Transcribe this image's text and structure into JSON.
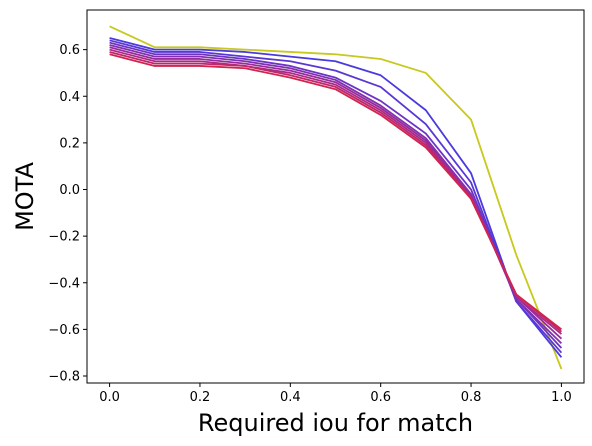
{
  "chart_data": {
    "type": "line",
    "title": "",
    "xlabel": "Required iou for match",
    "ylabel": "MOTA",
    "xlim": [
      -0.05,
      1.05
    ],
    "ylim": [
      -0.83,
      0.77
    ],
    "grid": false,
    "x": [
      0.0,
      0.1,
      0.2,
      0.3,
      0.4,
      0.5,
      0.6,
      0.7,
      0.8,
      0.9,
      1.0
    ],
    "x_ticks": [
      {
        "value": 0.0,
        "label": "0.0"
      },
      {
        "value": 0.2,
        "label": "0.2"
      },
      {
        "value": 0.4,
        "label": "0.4"
      },
      {
        "value": 0.6,
        "label": "0.6"
      },
      {
        "value": 0.8,
        "label": "0.8"
      },
      {
        "value": 1.0,
        "label": "1.0"
      }
    ],
    "y_ticks": [
      {
        "value": 0.6,
        "label": "0.6"
      },
      {
        "value": 0.4,
        "label": "0.4"
      },
      {
        "value": 0.2,
        "label": "0.2"
      },
      {
        "value": 0.0,
        "label": "0.0"
      },
      {
        "value": -0.2,
        "label": "−0.2"
      },
      {
        "value": -0.4,
        "label": "−0.4"
      },
      {
        "value": -0.6,
        "label": "−0.6"
      },
      {
        "value": -0.8,
        "label": "−0.8"
      }
    ],
    "series": [
      {
        "color": "#c8c81e",
        "values": [
          0.7,
          0.61,
          0.61,
          0.6,
          0.59,
          0.58,
          0.56,
          0.5,
          0.3,
          -0.28,
          -0.77
        ]
      },
      {
        "color": "#4b3adf",
        "values": [
          0.65,
          0.6,
          0.6,
          0.59,
          0.57,
          0.55,
          0.49,
          0.34,
          0.07,
          -0.48,
          -0.72
        ]
      },
      {
        "color": "#5a37d4",
        "values": [
          0.64,
          0.59,
          0.59,
          0.57,
          0.55,
          0.51,
          0.44,
          0.28,
          0.03,
          -0.48,
          -0.7
        ]
      },
      {
        "color": "#6e33c4",
        "values": [
          0.63,
          0.58,
          0.58,
          0.56,
          0.53,
          0.48,
          0.38,
          0.24,
          0.0,
          -0.47,
          -0.68
        ]
      },
      {
        "color": "#8230b0",
        "values": [
          0.62,
          0.57,
          0.57,
          0.55,
          0.52,
          0.47,
          0.36,
          0.22,
          -0.02,
          -0.47,
          -0.66
        ]
      },
      {
        "color": "#962c9c",
        "values": [
          0.61,
          0.56,
          0.56,
          0.54,
          0.51,
          0.46,
          0.35,
          0.21,
          -0.03,
          -0.46,
          -0.64
        ]
      },
      {
        "color": "#aa2a86",
        "values": [
          0.6,
          0.55,
          0.55,
          0.53,
          0.5,
          0.45,
          0.34,
          0.2,
          -0.03,
          -0.46,
          -0.62
        ]
      },
      {
        "color": "#be276c",
        "values": [
          0.59,
          0.54,
          0.54,
          0.53,
          0.49,
          0.44,
          0.33,
          0.19,
          -0.04,
          -0.45,
          -0.61
        ]
      },
      {
        "color": "#d2244e",
        "values": [
          0.58,
          0.53,
          0.53,
          0.52,
          0.48,
          0.43,
          0.32,
          0.18,
          -0.04,
          -0.45,
          -0.6
        ]
      }
    ]
  }
}
